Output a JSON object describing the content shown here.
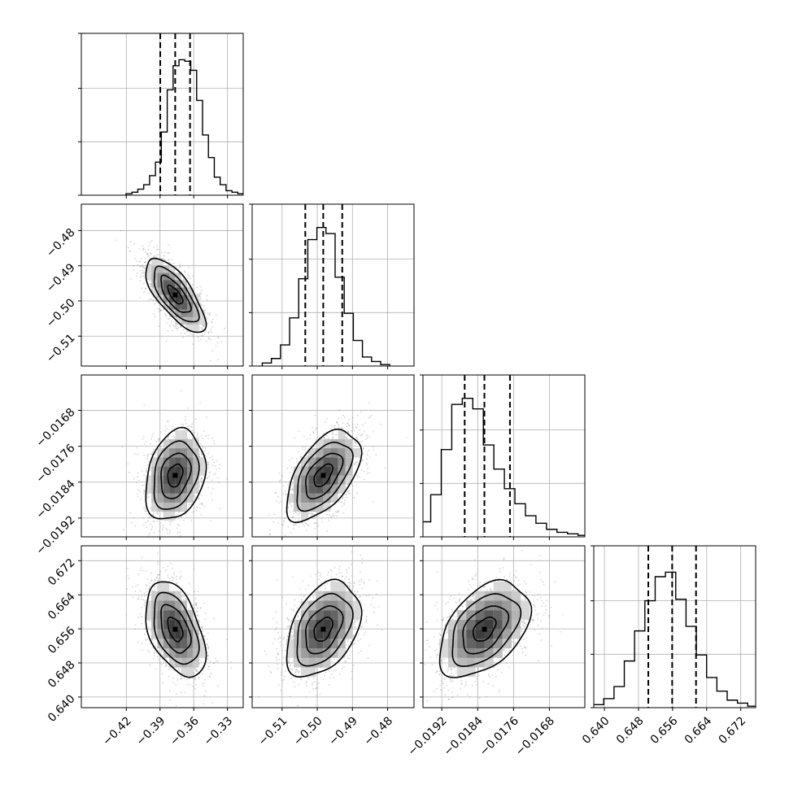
{
  "chart_data": {
    "type": "corner",
    "parameters": [
      {
        "ticks": [
          -0.42,
          -0.39,
          -0.36,
          -0.33
        ],
        "tick_labels": [
          "−0.42",
          "−0.39",
          "−0.36",
          "−0.33"
        ],
        "range": [
          -0.46,
          -0.316
        ]
      },
      {
        "ticks": [
          -0.51,
          -0.5,
          -0.49,
          -0.48
        ],
        "tick_labels": [
          "−0.51",
          "−0.50",
          "−0.49",
          "−0.48"
        ],
        "range": [
          -0.5185,
          -0.4725
        ]
      },
      {
        "ticks": [
          -0.0192,
          -0.0184,
          -0.0176,
          -0.0168
        ],
        "tick_labels": [
          "−0.0192",
          "−0.0184",
          "−0.0176",
          "−0.0168"
        ],
        "range": [
          -0.01962,
          -0.01601
        ]
      },
      {
        "ticks": [
          0.64,
          0.648,
          0.656,
          0.664,
          0.672
        ],
        "tick_labels": [
          "0.640",
          "0.648",
          "0.656",
          "0.664",
          "0.672"
        ],
        "range": [
          0.6375,
          0.6755
        ]
      }
    ],
    "quantiles": [
      [
        -0.3898,
        -0.3765,
        -0.3633
      ],
      [
        -0.5034,
        -0.4983,
        -0.4929
      ],
      [
        -0.01869,
        -0.01825,
        -0.01768
      ],
      [
        0.6503,
        0.6559,
        0.6615
      ]
    ],
    "histograms": [
      [
        0.01,
        0.02,
        0.04,
        0.07,
        0.13,
        0.22,
        0.42,
        0.7,
        0.86,
        0.9,
        0.89,
        0.83,
        0.63,
        0.4,
        0.25,
        0.12,
        0.07,
        0.03,
        0.02,
        0.01
      ],
      [
        0.02,
        0.05,
        0.14,
        0.32,
        0.58,
        0.84,
        0.92,
        0.88,
        0.59,
        0.35,
        0.17,
        0.06,
        0.03,
        0.01
      ],
      [
        0.03,
        0.1,
        0.28,
        0.58,
        0.88,
        0.92,
        0.85,
        0.61,
        0.45,
        0.32,
        0.22,
        0.14,
        0.09,
        0.05,
        0.03,
        0.02,
        0.01
      ],
      [
        0.02,
        0.06,
        0.14,
        0.31,
        0.51,
        0.71,
        0.87,
        0.9,
        0.72,
        0.54,
        0.35,
        0.2,
        0.11,
        0.05,
        0.03,
        0.01
      ]
    ],
    "correlations": {
      "1,0": -0.72,
      "2,0": 0.25,
      "2,1": 0.55,
      "3,0": -0.45,
      "3,1": 0.4,
      "3,2": 0.45
    },
    "grid": true
  }
}
